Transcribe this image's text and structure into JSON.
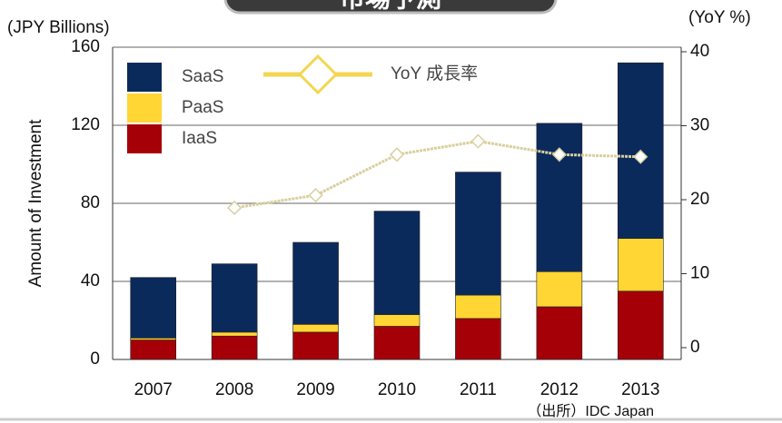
{
  "chart_data": {
    "type": "bar",
    "title": "市場予測",
    "y_label_top": "(JPY Billions)",
    "y2_label_top": "(YoY %)",
    "y_label": "Amount of Investment",
    "source": "（出所）IDC Japan",
    "categories": [
      "2007",
      "2008",
      "2009",
      "2010",
      "2011",
      "2012",
      "2013"
    ],
    "series": [
      {
        "name": "IaaS",
        "color": "#a50008",
        "values": [
          10,
          12,
          14,
          17,
          21,
          27,
          35
        ]
      },
      {
        "name": "PaaS",
        "color": "#ffd633",
        "values": [
          1,
          2,
          4,
          6,
          12,
          18,
          27
        ]
      },
      {
        "name": "SaaS",
        "color": "#0b2a5c",
        "values": [
          31,
          35,
          42,
          53,
          63,
          76,
          90
        ]
      },
      {
        "name": "YoY 成長率",
        "color": "#d9cf9e",
        "legend_color": "#f3d652",
        "type": "line",
        "axis": "y2",
        "values": [
          null,
          18.9,
          20.6,
          26.1,
          27.9,
          26.1,
          25.8
        ]
      }
    ],
    "ylim": [
      0,
      160
    ],
    "yticks": [
      0,
      40,
      80,
      120,
      160
    ],
    "y2lim": [
      0,
      40
    ],
    "y2ticks": [
      0,
      10,
      20,
      30,
      40
    ],
    "grid": true
  }
}
